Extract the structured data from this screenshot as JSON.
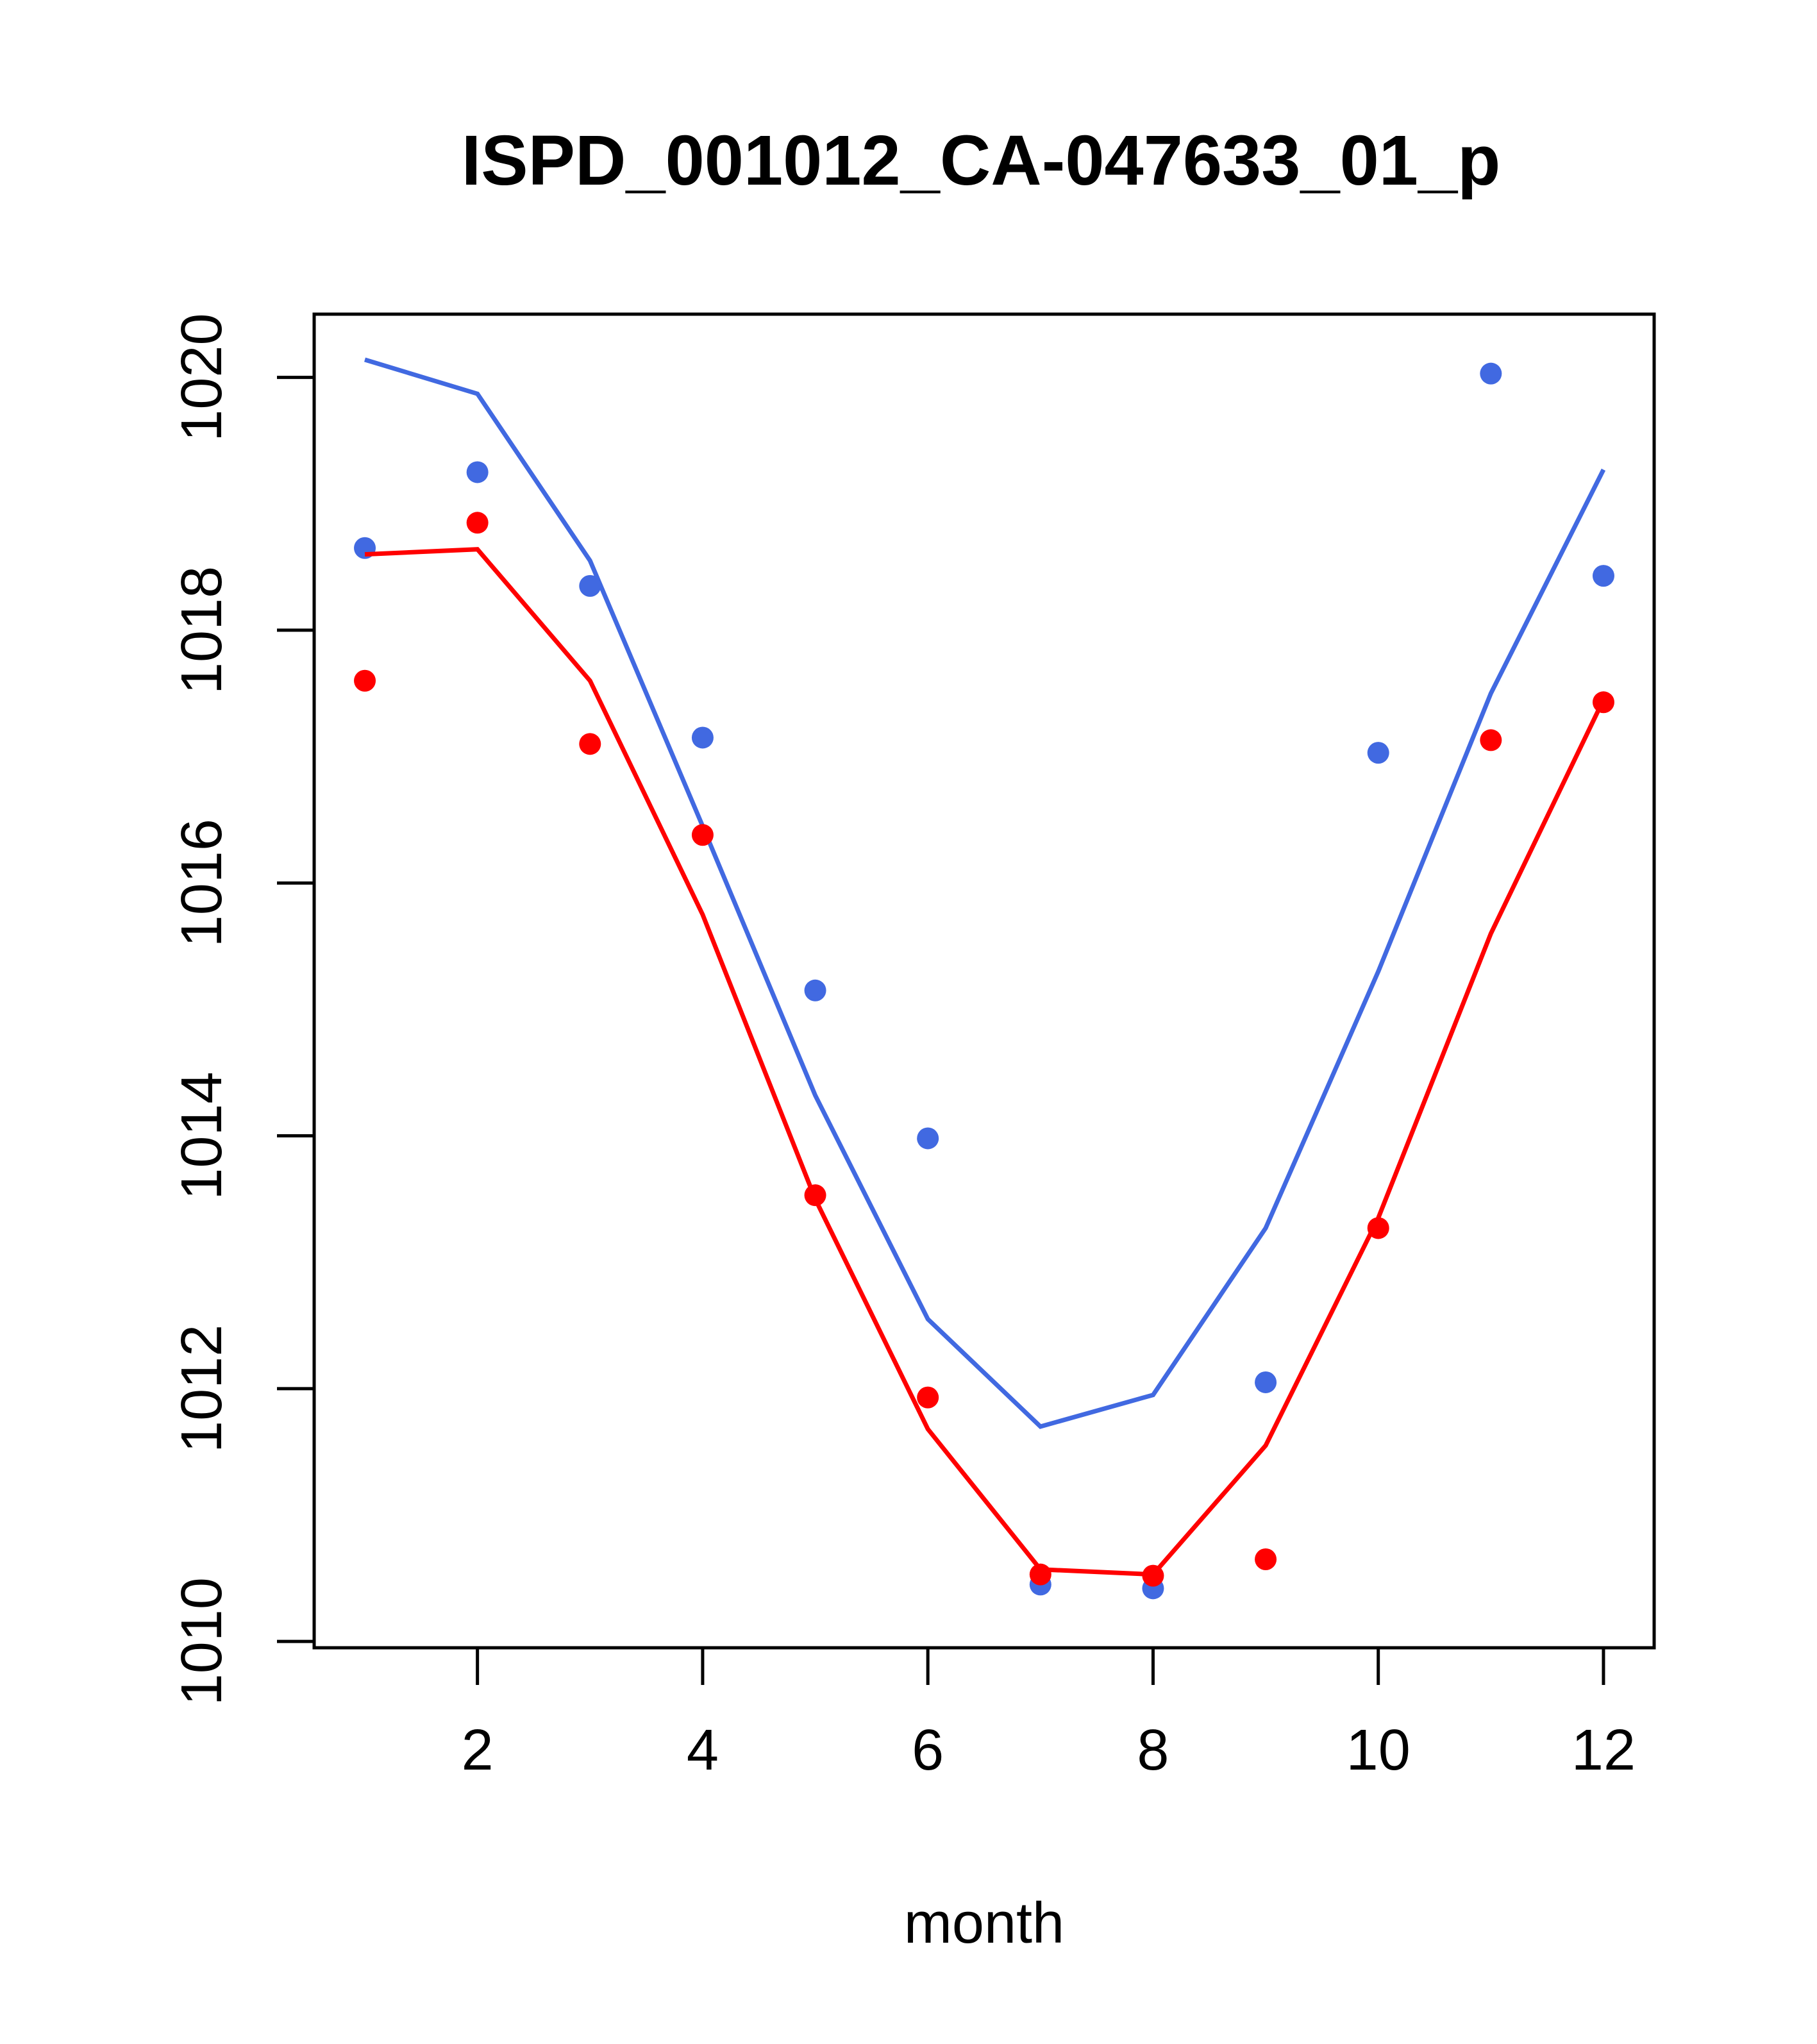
{
  "chart_data": {
    "type": "line",
    "title": "ISPD_001012_CA-047633_01_p",
    "xlabel": "month",
    "ylabel": "",
    "xlim": [
      0.55,
      12.45
    ],
    "ylim": [
      1009.95,
      1020.5
    ],
    "x_ticks": [
      2,
      4,
      6,
      8,
      10,
      12
    ],
    "x_tick_labels": [
      "2",
      "4",
      "6",
      "8",
      "10",
      "12"
    ],
    "y_ticks": [
      1010,
      1012,
      1014,
      1016,
      1018,
      1020
    ],
    "y_tick_labels": [
      "1010",
      "1012",
      "1014",
      "1016",
      "1018",
      "1020"
    ],
    "grid": false,
    "x": [
      1,
      2,
      3,
      4,
      5,
      6,
      7,
      8,
      9,
      10,
      11,
      12
    ],
    "series": [
      {
        "name": "blue points",
        "kind": "points",
        "color": "#4169E1",
        "values": [
          1018.65,
          1019.25,
          1018.35,
          1017.15,
          1015.15,
          1013.98,
          1010.45,
          1010.42,
          1012.05,
          1017.03,
          1020.03,
          1018.43
        ]
      },
      {
        "name": "blue line",
        "kind": "line",
        "color": "#4169E1",
        "values": [
          1020.14,
          1019.87,
          1018.55,
          1016.45,
          1014.32,
          1012.55,
          1011.7,
          1011.95,
          1013.27,
          1015.3,
          1017.5,
          1019.27
        ]
      },
      {
        "name": "red points",
        "kind": "points",
        "color": "#FF0000",
        "values": [
          1017.6,
          1018.85,
          1017.1,
          1016.38,
          1013.53,
          1011.93,
          1010.53,
          1010.52,
          1010.65,
          1013.27,
          1017.13,
          1017.43
        ]
      },
      {
        "name": "red line",
        "kind": "line",
        "color": "#FF0000",
        "values": [
          1018.6,
          1018.64,
          1017.6,
          1015.75,
          1013.5,
          1011.68,
          1010.57,
          1010.53,
          1011.55,
          1013.35,
          1015.6,
          1017.45
        ]
      }
    ]
  }
}
